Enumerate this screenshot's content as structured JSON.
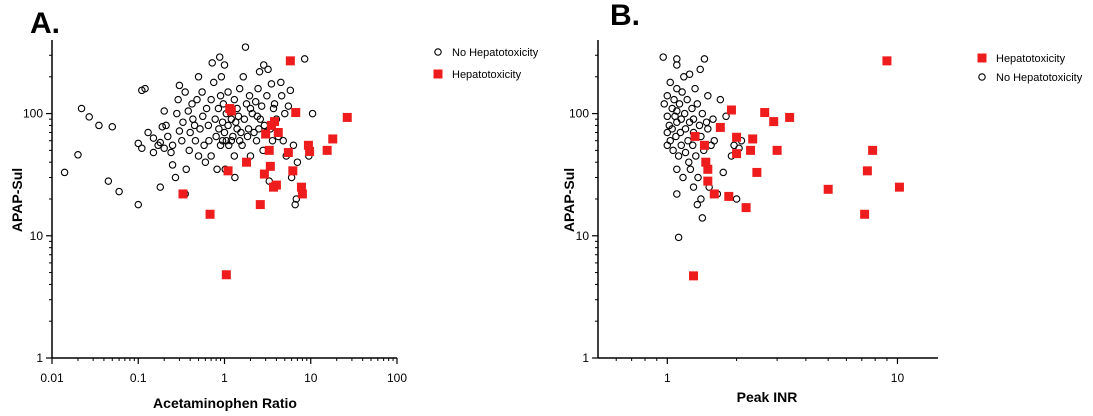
{
  "chart_data": [
    {
      "panel_label": "A.",
      "type": "scatter",
      "xlabel": "Acetaminophen Ratio",
      "ylabel": "APAP-Sul",
      "xscale": "log",
      "yscale": "log",
      "xlim": [
        0.01,
        100
      ],
      "ylim": [
        1,
        400
      ],
      "xticks": [
        "0.01",
        "0.1",
        "1",
        "10",
        "100"
      ],
      "yticks": [
        "1",
        "10",
        "100"
      ],
      "legend_position": "top-right",
      "colors": {
        "hepatotoxicity": "#ee1c1c",
        "no_hepatotoxicity": "#000000"
      },
      "series": [
        {
          "name": "No Hepatotoxicity",
          "marker": "open-circle",
          "points": [
            [
              0.014,
              33
            ],
            [
              0.02,
              46
            ],
            [
              0.022,
              110
            ],
            [
              0.027,
              94
            ],
            [
              0.035,
              80
            ],
            [
              0.045,
              28
            ],
            [
              0.05,
              78
            ],
            [
              0.06,
              23
            ],
            [
              0.1,
              57
            ],
            [
              0.1,
              18
            ],
            [
              0.11,
              52
            ],
            [
              0.11,
              155
            ],
            [
              0.12,
              160
            ],
            [
              0.13,
              70
            ],
            [
              0.15,
              48
            ],
            [
              0.15,
              63
            ],
            [
              0.17,
              55
            ],
            [
              0.18,
              58
            ],
            [
              0.18,
              25
            ],
            [
              0.19,
              78
            ],
            [
              0.2,
              105
            ],
            [
              0.2,
              52
            ],
            [
              0.21,
              80
            ],
            [
              0.22,
              65
            ],
            [
              0.24,
              48
            ],
            [
              0.25,
              55
            ],
            [
              0.25,
              38
            ],
            [
              0.27,
              30
            ],
            [
              0.28,
              100
            ],
            [
              0.29,
              130
            ],
            [
              0.3,
              170
            ],
            [
              0.3,
              72
            ],
            [
              0.32,
              60
            ],
            [
              0.33,
              85
            ],
            [
              0.35,
              150
            ],
            [
              0.35,
              22
            ],
            [
              0.36,
              35
            ],
            [
              0.38,
              105
            ],
            [
              0.39,
              50
            ],
            [
              0.4,
              70
            ],
            [
              0.42,
              120
            ],
            [
              0.43,
              90
            ],
            [
              0.45,
              80
            ],
            [
              0.46,
              60
            ],
            [
              0.48,
              130
            ],
            [
              0.5,
              200
            ],
            [
              0.5,
              45
            ],
            [
              0.52,
              75
            ],
            [
              0.55,
              150
            ],
            [
              0.56,
              95
            ],
            [
              0.58,
              55
            ],
            [
              0.6,
              40
            ],
            [
              0.62,
              110
            ],
            [
              0.65,
              80
            ],
            [
              0.66,
              60
            ],
            [
              0.68,
              15
            ],
            [
              0.7,
              130
            ],
            [
              0.7,
              45
            ],
            [
              0.72,
              260
            ],
            [
              0.75,
              180
            ],
            [
              0.78,
              90
            ],
            [
              0.8,
              65
            ],
            [
              0.82,
              35
            ],
            [
              0.85,
              110
            ],
            [
              0.86,
              75
            ],
            [
              0.88,
              290
            ],
            [
              0.9,
              140
            ],
            [
              0.9,
              55
            ],
            [
              0.92,
              200
            ],
            [
              0.95,
              85
            ],
            [
              0.95,
              60
            ],
            [
              0.97,
              120
            ],
            [
              1.0,
              250
            ],
            [
              1.0,
              70
            ],
            [
              1.02,
              35
            ],
            [
              1.05,
              100
            ],
            [
              1.05,
              60
            ],
            [
              1.1,
              80
            ],
            [
              1.1,
              150
            ],
            [
              1.12,
              55
            ],
            [
              1.15,
              110
            ],
            [
              1.2,
              90
            ],
            [
              1.2,
              60
            ],
            [
              1.25,
              65
            ],
            [
              1.3,
              130
            ],
            [
              1.3,
              45
            ],
            [
              1.32,
              30
            ],
            [
              1.35,
              85
            ],
            [
              1.4,
              75
            ],
            [
              1.4,
              110
            ],
            [
              1.45,
              95
            ],
            [
              1.5,
              60
            ],
            [
              1.5,
              160
            ],
            [
              1.55,
              70
            ],
            [
              1.6,
              55
            ],
            [
              1.65,
              200
            ],
            [
              1.7,
              90
            ],
            [
              1.75,
              350
            ],
            [
              1.8,
              120
            ],
            [
              1.85,
              65
            ],
            [
              1.9,
              75
            ],
            [
              1.95,
              140
            ],
            [
              2.0,
              110
            ],
            [
              2.0,
              45
            ],
            [
              2.1,
              100
            ],
            [
              2.2,
              70
            ],
            [
              2.3,
              125
            ],
            [
              2.35,
              60
            ],
            [
              2.4,
              95
            ],
            [
              2.45,
              160
            ],
            [
              2.5,
              75
            ],
            [
              2.55,
              220
            ],
            [
              2.6,
              90
            ],
            [
              2.7,
              115
            ],
            [
              2.8,
              50
            ],
            [
              2.85,
              250
            ],
            [
              2.9,
              80
            ],
            [
              3.0,
              70
            ],
            [
              3.1,
              140
            ],
            [
              3.2,
              230
            ],
            [
              3.3,
              28
            ],
            [
              3.4,
              75
            ],
            [
              3.5,
              175
            ],
            [
              3.6,
              60
            ],
            [
              3.7,
              110
            ],
            [
              3.8,
              120
            ],
            [
              4.0,
              90
            ],
            [
              4.2,
              65
            ],
            [
              4.5,
              180
            ],
            [
              4.6,
              140
            ],
            [
              4.8,
              60
            ],
            [
              5.0,
              100
            ],
            [
              5.2,
              45
            ],
            [
              5.5,
              115
            ],
            [
              5.8,
              155
            ],
            [
              6.0,
              30
            ],
            [
              6.3,
              55
            ],
            [
              6.6,
              18
            ],
            [
              6.8,
              20
            ],
            [
              7.0,
              40
            ],
            [
              8.5,
              280
            ],
            [
              9.5,
              45
            ],
            [
              10.5,
              100
            ]
          ]
        },
        {
          "name": "Hepatotoxicity",
          "marker": "filled-square",
          "points": [
            [
              0.33,
              22
            ],
            [
              0.68,
              15
            ],
            [
              1.05,
              4.8
            ],
            [
              1.1,
              34
            ],
            [
              1.15,
              110
            ],
            [
              1.2,
              105
            ],
            [
              1.8,
              40
            ],
            [
              2.6,
              18
            ],
            [
              2.9,
              32
            ],
            [
              3.0,
              68
            ],
            [
              3.3,
              50
            ],
            [
              3.4,
              37
            ],
            [
              3.5,
              80
            ],
            [
              3.7,
              25
            ],
            [
              3.8,
              86
            ],
            [
              4.0,
              26
            ],
            [
              4.2,
              70
            ],
            [
              5.5,
              48
            ],
            [
              5.8,
              270
            ],
            [
              6.2,
              34
            ],
            [
              6.7,
              102
            ],
            [
              7.8,
              25
            ],
            [
              8.0,
              22
            ],
            [
              9.4,
              55
            ],
            [
              9.7,
              49
            ],
            [
              15.5,
              50
            ],
            [
              18.0,
              62
            ],
            [
              26.5,
              93
            ]
          ]
        }
      ]
    },
    {
      "panel_label": "B.",
      "type": "scatter",
      "xlabel": "Peak INR",
      "ylabel": "APAP-Sul",
      "xscale": "log",
      "yscale": "log",
      "xlim": [
        0.5,
        15
      ],
      "ylim": [
        1,
        400
      ],
      "xticks": [
        "1",
        "10"
      ],
      "yticks": [
        "1",
        "10",
        "100"
      ],
      "legend_position": "top-right",
      "colors": {
        "hepatotoxicity": "#ee1c1c",
        "no_hepatotoxicity": "#000000"
      },
      "series": [
        {
          "name": "Hepatotoxicity",
          "marker": "filled-square",
          "points": [
            [
              1.3,
              4.7
            ],
            [
              1.32,
              65
            ],
            [
              1.45,
              55
            ],
            [
              1.47,
              40
            ],
            [
              1.5,
              28
            ],
            [
              1.5,
              35
            ],
            [
              1.6,
              22
            ],
            [
              1.7,
              77
            ],
            [
              1.85,
              21
            ],
            [
              1.9,
              107
            ],
            [
              2.0,
              47
            ],
            [
              2.0,
              64
            ],
            [
              2.2,
              17
            ],
            [
              2.3,
              50
            ],
            [
              2.35,
              62
            ],
            [
              2.45,
              33
            ],
            [
              2.65,
              102
            ],
            [
              2.9,
              86
            ],
            [
              3.0,
              50
            ],
            [
              3.4,
              93
            ],
            [
              5.0,
              24
            ],
            [
              7.2,
              15
            ],
            [
              7.4,
              34
            ],
            [
              7.8,
              50
            ],
            [
              9.0,
              270
            ],
            [
              10.2,
              25
            ]
          ]
        },
        {
          "name": "No Hepatotoxicity",
          "marker": "open-circle",
          "points": [
            [
              0.96,
              290
            ],
            [
              0.97,
              120
            ],
            [
              1.0,
              140
            ],
            [
              1.0,
              95
            ],
            [
              1.0,
              70
            ],
            [
              1.0,
              55
            ],
            [
              1.02,
              80
            ],
            [
              1.03,
              180
            ],
            [
              1.03,
              60
            ],
            [
              1.05,
              110
            ],
            [
              1.05,
              75
            ],
            [
              1.06,
              50
            ],
            [
              1.07,
              130
            ],
            [
              1.08,
              95
            ],
            [
              1.09,
              65
            ],
            [
              1.1,
              280
            ],
            [
              1.1,
              250
            ],
            [
              1.1,
              160
            ],
            [
              1.1,
              105
            ],
            [
              1.1,
              85
            ],
            [
              1.1,
              35
            ],
            [
              1.1,
              22
            ],
            [
              1.12,
              9.7
            ],
            [
              1.12,
              45
            ],
            [
              1.13,
              120
            ],
            [
              1.14,
              70
            ],
            [
              1.15,
              90
            ],
            [
              1.15,
              55
            ],
            [
              1.16,
              150
            ],
            [
              1.17,
              30
            ],
            [
              1.18,
              200
            ],
            [
              1.19,
              100
            ],
            [
              1.2,
              75
            ],
            [
              1.2,
              48
            ],
            [
              1.22,
              130
            ],
            [
              1.23,
              60
            ],
            [
              1.24,
              40
            ],
            [
              1.25,
              210
            ],
            [
              1.25,
              85
            ],
            [
              1.26,
              35
            ],
            [
              1.28,
              110
            ],
            [
              1.29,
              55
            ],
            [
              1.3,
              25
            ],
            [
              1.3,
              90
            ],
            [
              1.3,
              70
            ],
            [
              1.32,
              160
            ],
            [
              1.33,
              45
            ],
            [
              1.35,
              18
            ],
            [
              1.35,
              120
            ],
            [
              1.36,
              30
            ],
            [
              1.38,
              80
            ],
            [
              1.39,
              230
            ],
            [
              1.4,
              65
            ],
            [
              1.4,
              20
            ],
            [
              1.42,
              14
            ],
            [
              1.42,
              100
            ],
            [
              1.44,
              50
            ],
            [
              1.45,
              280
            ],
            [
              1.46,
              40
            ],
            [
              1.48,
              85
            ],
            [
              1.5,
              75
            ],
            [
              1.5,
              140
            ],
            [
              1.52,
              25
            ],
            [
              1.55,
              55
            ],
            [
              1.58,
              90
            ],
            [
              1.6,
              60
            ],
            [
              1.65,
              22
            ],
            [
              1.7,
              130
            ],
            [
              1.75,
              33
            ],
            [
              1.8,
              95
            ],
            [
              1.9,
              45
            ],
            [
              1.95,
              55
            ],
            [
              2.0,
              20
            ],
            [
              2.05,
              52
            ],
            [
              2.1,
              60
            ]
          ]
        }
      ]
    }
  ]
}
